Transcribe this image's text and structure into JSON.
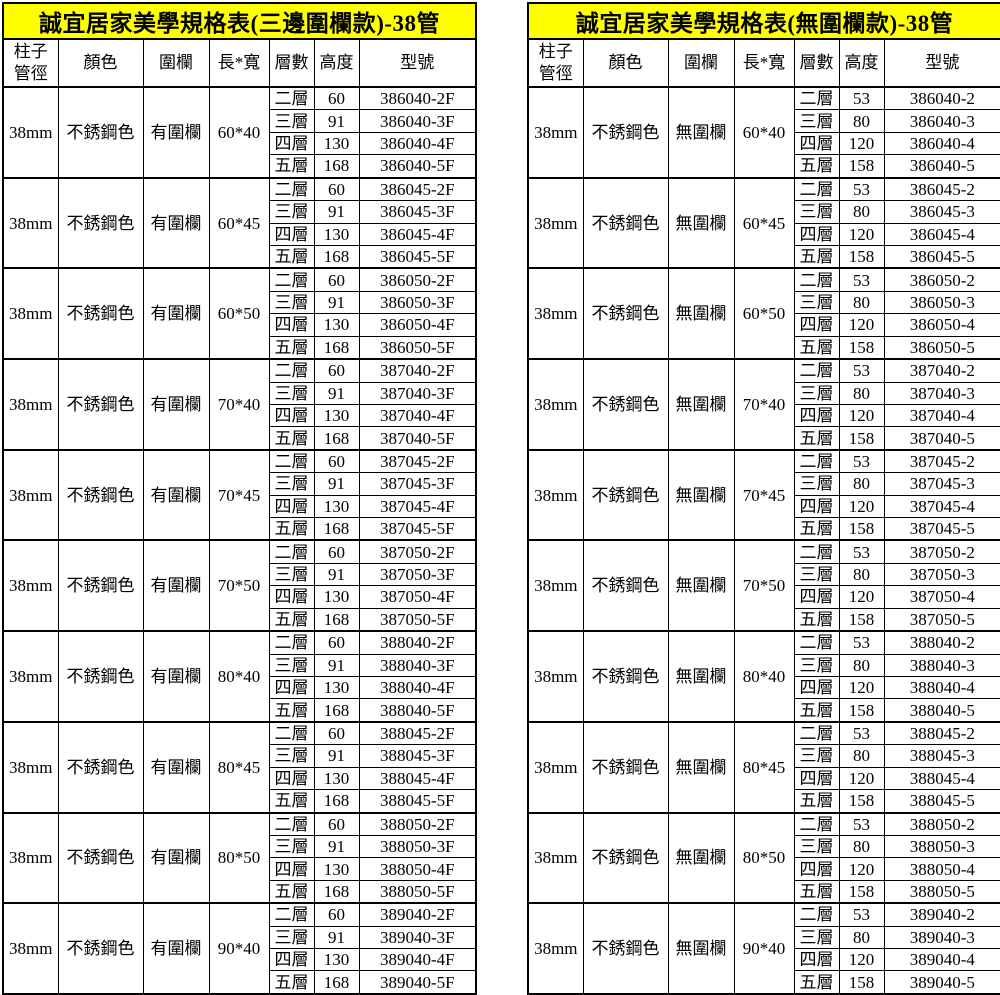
{
  "styles": {
    "title_bg": "#ffff00",
    "border_color": "#000000",
    "text_color": "#000000",
    "page_bg": "#ffffff"
  },
  "tables": [
    {
      "title": "誠宜居家美學規格表(三邊圍欄款)-38管",
      "headers": [
        "柱子\n管徑",
        "顏色",
        "圍欄",
        "長*寬",
        "層數",
        "高度",
        "型號"
      ],
      "groups": [
        {
          "diameter": "38mm",
          "color": "不銹鋼色",
          "fence": "有圍欄",
          "size": "60*40",
          "rows": [
            [
              "二層",
              "60",
              "386040-2F"
            ],
            [
              "三層",
              "91",
              "386040-3F"
            ],
            [
              "四層",
              "130",
              "386040-4F"
            ],
            [
              "五層",
              "168",
              "386040-5F"
            ]
          ]
        },
        {
          "diameter": "38mm",
          "color": "不銹鋼色",
          "fence": "有圍欄",
          "size": "60*45",
          "rows": [
            [
              "二層",
              "60",
              "386045-2F"
            ],
            [
              "三層",
              "91",
              "386045-3F"
            ],
            [
              "四層",
              "130",
              "386045-4F"
            ],
            [
              "五層",
              "168",
              "386045-5F"
            ]
          ]
        },
        {
          "diameter": "38mm",
          "color": "不銹鋼色",
          "fence": "有圍欄",
          "size": "60*50",
          "rows": [
            [
              "二層",
              "60",
              "386050-2F"
            ],
            [
              "三層",
              "91",
              "386050-3F"
            ],
            [
              "四層",
              "130",
              "386050-4F"
            ],
            [
              "五層",
              "168",
              "386050-5F"
            ]
          ]
        },
        {
          "diameter": "38mm",
          "color": "不銹鋼色",
          "fence": "有圍欄",
          "size": "70*40",
          "rows": [
            [
              "二層",
              "60",
              "387040-2F"
            ],
            [
              "三層",
              "91",
              "387040-3F"
            ],
            [
              "四層",
              "130",
              "387040-4F"
            ],
            [
              "五層",
              "168",
              "387040-5F"
            ]
          ]
        },
        {
          "diameter": "38mm",
          "color": "不銹鋼色",
          "fence": "有圍欄",
          "size": "70*45",
          "rows": [
            [
              "二層",
              "60",
              "387045-2F"
            ],
            [
              "三層",
              "91",
              "387045-3F"
            ],
            [
              "四層",
              "130",
              "387045-4F"
            ],
            [
              "五層",
              "168",
              "387045-5F"
            ]
          ]
        },
        {
          "diameter": "38mm",
          "color": "不銹鋼色",
          "fence": "有圍欄",
          "size": "70*50",
          "rows": [
            [
              "二層",
              "60",
              "387050-2F"
            ],
            [
              "三層",
              "91",
              "387050-3F"
            ],
            [
              "四層",
              "130",
              "387050-4F"
            ],
            [
              "五層",
              "168",
              "387050-5F"
            ]
          ]
        },
        {
          "diameter": "38mm",
          "color": "不銹鋼色",
          "fence": "有圍欄",
          "size": "80*40",
          "rows": [
            [
              "二層",
              "60",
              "388040-2F"
            ],
            [
              "三層",
              "91",
              "388040-3F"
            ],
            [
              "四層",
              "130",
              "388040-4F"
            ],
            [
              "五層",
              "168",
              "388040-5F"
            ]
          ]
        },
        {
          "diameter": "38mm",
          "color": "不銹鋼色",
          "fence": "有圍欄",
          "size": "80*45",
          "rows": [
            [
              "二層",
              "60",
              "388045-2F"
            ],
            [
              "三層",
              "91",
              "388045-3F"
            ],
            [
              "四層",
              "130",
              "388045-4F"
            ],
            [
              "五層",
              "168",
              "388045-5F"
            ]
          ]
        },
        {
          "diameter": "38mm",
          "color": "不銹鋼色",
          "fence": "有圍欄",
          "size": "80*50",
          "rows": [
            [
              "二層",
              "60",
              "388050-2F"
            ],
            [
              "三層",
              "91",
              "388050-3F"
            ],
            [
              "四層",
              "130",
              "388050-4F"
            ],
            [
              "五層",
              "168",
              "388050-5F"
            ]
          ]
        },
        {
          "diameter": "38mm",
          "color": "不銹鋼色",
          "fence": "有圍欄",
          "size": "90*40",
          "rows": [
            [
              "二層",
              "60",
              "389040-2F"
            ],
            [
              "三層",
              "91",
              "389040-3F"
            ],
            [
              "四層",
              "130",
              "389040-4F"
            ],
            [
              "五層",
              "168",
              "389040-5F"
            ]
          ]
        }
      ]
    },
    {
      "title": "誠宜居家美學規格表(無圍欄款)-38管",
      "headers": [
        "柱子\n管徑",
        "顏色",
        "圍欄",
        "長*寬",
        "層數",
        "高度",
        "型號"
      ],
      "groups": [
        {
          "diameter": "38mm",
          "color": "不銹鋼色",
          "fence": "無圍欄",
          "size": "60*40",
          "rows": [
            [
              "二層",
              "53",
              "386040-2"
            ],
            [
              "三層",
              "80",
              "386040-3"
            ],
            [
              "四層",
              "120",
              "386040-4"
            ],
            [
              "五層",
              "158",
              "386040-5"
            ]
          ]
        },
        {
          "diameter": "38mm",
          "color": "不銹鋼色",
          "fence": "無圍欄",
          "size": "60*45",
          "rows": [
            [
              "二層",
              "53",
              "386045-2"
            ],
            [
              "三層",
              "80",
              "386045-3"
            ],
            [
              "四層",
              "120",
              "386045-4"
            ],
            [
              "五層",
              "158",
              "386045-5"
            ]
          ]
        },
        {
          "diameter": "38mm",
          "color": "不銹鋼色",
          "fence": "無圍欄",
          "size": "60*50",
          "rows": [
            [
              "二層",
              "53",
              "386050-2"
            ],
            [
              "三層",
              "80",
              "386050-3"
            ],
            [
              "四層",
              "120",
              "386050-4"
            ],
            [
              "五層",
              "158",
              "386050-5"
            ]
          ]
        },
        {
          "diameter": "38mm",
          "color": "不銹鋼色",
          "fence": "無圍欄",
          "size": "70*40",
          "rows": [
            [
              "二層",
              "53",
              "387040-2"
            ],
            [
              "三層",
              "80",
              "387040-3"
            ],
            [
              "四層",
              "120",
              "387040-4"
            ],
            [
              "五層",
              "158",
              "387040-5"
            ]
          ]
        },
        {
          "diameter": "38mm",
          "color": "不銹鋼色",
          "fence": "無圍欄",
          "size": "70*45",
          "rows": [
            [
              "二層",
              "53",
              "387045-2"
            ],
            [
              "三層",
              "80",
              "387045-3"
            ],
            [
              "四層",
              "120",
              "387045-4"
            ],
            [
              "五層",
              "158",
              "387045-5"
            ]
          ]
        },
        {
          "diameter": "38mm",
          "color": "不銹鋼色",
          "fence": "無圍欄",
          "size": "70*50",
          "rows": [
            [
              "二層",
              "53",
              "387050-2"
            ],
            [
              "三層",
              "80",
              "387050-3"
            ],
            [
              "四層",
              "120",
              "387050-4"
            ],
            [
              "五層",
              "158",
              "387050-5"
            ]
          ]
        },
        {
          "diameter": "38mm",
          "color": "不銹鋼色",
          "fence": "無圍欄",
          "size": "80*40",
          "rows": [
            [
              "二層",
              "53",
              "388040-2"
            ],
            [
              "三層",
              "80",
              "388040-3"
            ],
            [
              "四層",
              "120",
              "388040-4"
            ],
            [
              "五層",
              "158",
              "388040-5"
            ]
          ]
        },
        {
          "diameter": "38mm",
          "color": "不銹鋼色",
          "fence": "無圍欄",
          "size": "80*45",
          "rows": [
            [
              "二層",
              "53",
              "388045-2"
            ],
            [
              "三層",
              "80",
              "388045-3"
            ],
            [
              "四層",
              "120",
              "388045-4"
            ],
            [
              "五層",
              "158",
              "388045-5"
            ]
          ]
        },
        {
          "diameter": "38mm",
          "color": "不銹鋼色",
          "fence": "無圍欄",
          "size": "80*50",
          "rows": [
            [
              "二層",
              "53",
              "388050-2"
            ],
            [
              "三層",
              "80",
              "388050-3"
            ],
            [
              "四層",
              "120",
              "388050-4"
            ],
            [
              "五層",
              "158",
              "388050-5"
            ]
          ]
        },
        {
          "diameter": "38mm",
          "color": "不銹鋼色",
          "fence": "無圍欄",
          "size": "90*40",
          "rows": [
            [
              "二層",
              "53",
              "389040-2"
            ],
            [
              "三層",
              "80",
              "389040-3"
            ],
            [
              "四層",
              "120",
              "389040-4"
            ],
            [
              "五層",
              "158",
              "389040-5"
            ]
          ]
        }
      ]
    }
  ]
}
